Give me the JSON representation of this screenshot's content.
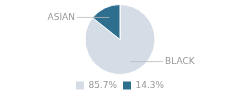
{
  "chart_data": {
    "type": "pie",
    "categories": [
      "BLACK",
      "ASIAN"
    ],
    "values": [
      85.7,
      14.3
    ],
    "value_labels": [
      "85.7%",
      "14.3%"
    ],
    "colors": [
      "#d4dce6",
      "#2e6e8e"
    ],
    "legend": "bottom"
  }
}
